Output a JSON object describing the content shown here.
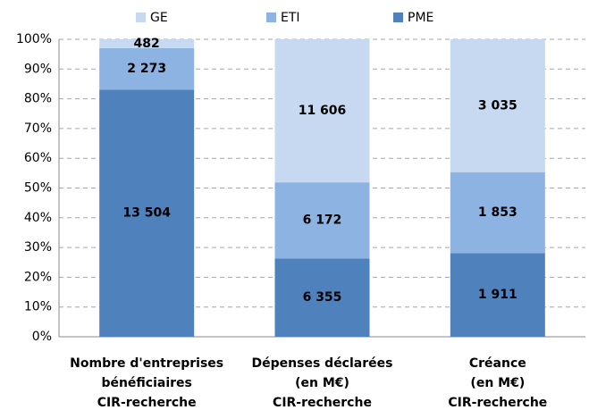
{
  "chart_data": {
    "type": "bar",
    "stacking": "percent",
    "categories": [
      [
        "Nombre d'entreprises",
        "bénéficiaires",
        "CIR-recherche"
      ],
      [
        "Dépenses déclarées",
        "(en M€)",
        "CIR-recherche"
      ],
      [
        "Créance",
        "(en M€)",
        "CIR-recherche"
      ]
    ],
    "series": [
      {
        "name": "PME",
        "color": "#4f81bd",
        "values": [
          13504,
          6355,
          1911
        ],
        "value_labels": [
          "13 504",
          "6 355",
          "1 911"
        ]
      },
      {
        "name": "ETI",
        "color": "#8db3e2",
        "values": [
          2273,
          6172,
          1853
        ],
        "value_labels": [
          "2 273",
          "6 172",
          "1 853"
        ]
      },
      {
        "name": "GE",
        "color": "#c6d9f1",
        "values": [
          482,
          11606,
          3035
        ],
        "value_labels": [
          "482",
          "11 606",
          "3 035"
        ]
      }
    ],
    "ylim": [
      0,
      100
    ],
    "yticks": [
      {
        "value": 0,
        "label": "0%"
      },
      {
        "value": 10,
        "label": "10%"
      },
      {
        "value": 20,
        "label": "20%"
      },
      {
        "value": 30,
        "label": "30%"
      },
      {
        "value": 40,
        "label": "40%"
      },
      {
        "value": 50,
        "label": "50%"
      },
      {
        "value": 60,
        "label": "60%"
      },
      {
        "value": 70,
        "label": "70%"
      },
      {
        "value": 80,
        "label": "80%"
      },
      {
        "value": 90,
        "label": "90%"
      },
      {
        "value": 100,
        "label": "100%"
      }
    ],
    "grid": true,
    "legend": "top"
  }
}
